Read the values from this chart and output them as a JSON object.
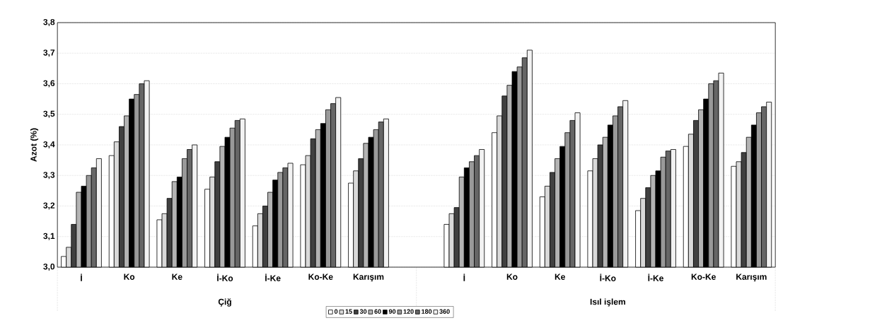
{
  "chart_data": {
    "type": "bar",
    "ylabel": "Azot (%)",
    "categories": [
      "İ",
      "Ko",
      "Ke",
      "İ-Ko",
      "İ-Ke",
      "Ko-Ke",
      "Karışım",
      null,
      "İ",
      "Ko",
      "Ke",
      "İ-Ko",
      "İ-Ke",
      "Ko-Ke",
      "Karışım"
    ],
    "annotations": [
      "Çiğ",
      "Isıl işlem"
    ],
    "ylim": [
      3.0,
      3.8
    ],
    "yticks": [
      {
        "value": 3.0,
        "label": "3,0"
      },
      {
        "value": 3.1,
        "label": "3,1"
      },
      {
        "value": 3.2,
        "label": "3,2"
      },
      {
        "value": 3.3,
        "label": "3,3"
      },
      {
        "value": 3.4,
        "label": "3,4"
      },
      {
        "value": 3.5,
        "label": "3,5"
      },
      {
        "value": 3.6,
        "label": "3,6"
      },
      {
        "value": 3.7,
        "label": "3,7"
      },
      {
        "value": 3.8,
        "label": "3,8"
      }
    ],
    "grid": "y",
    "legend": "bottom",
    "series": [
      {
        "name": "0",
        "color": "#ffffff",
        "values": [
          3.035,
          3.365,
          3.155,
          3.255,
          3.135,
          3.335,
          3.275,
          null,
          3.14,
          3.44,
          3.23,
          3.315,
          3.185,
          3.395,
          3.33
        ]
      },
      {
        "name": "15",
        "color": "#d9d9d9",
        "values": [
          3.065,
          3.41,
          3.175,
          3.295,
          3.175,
          3.365,
          3.315,
          null,
          3.175,
          3.495,
          3.265,
          3.355,
          3.225,
          3.435,
          3.345
        ]
      },
      {
        "name": "30",
        "color": "#404040",
        "values": [
          3.14,
          3.46,
          3.225,
          3.345,
          3.2,
          3.42,
          3.355,
          null,
          3.195,
          3.56,
          3.31,
          3.4,
          3.26,
          3.48,
          3.375
        ]
      },
      {
        "name": "60",
        "color": "#b3b3b3",
        "values": [
          3.245,
          3.495,
          3.28,
          3.395,
          3.245,
          3.45,
          3.405,
          null,
          3.295,
          3.595,
          3.355,
          3.425,
          3.3,
          3.515,
          3.425
        ]
      },
      {
        "name": "90",
        "color": "#000000",
        "values": [
          3.265,
          3.55,
          3.295,
          3.425,
          3.285,
          3.47,
          3.425,
          null,
          3.325,
          3.64,
          3.395,
          3.465,
          3.315,
          3.55,
          3.465
        ]
      },
      {
        "name": "120",
        "color": "#999999",
        "values": [
          3.3,
          3.565,
          3.355,
          3.455,
          3.31,
          3.515,
          3.45,
          null,
          3.345,
          3.655,
          3.44,
          3.495,
          3.36,
          3.6,
          3.505
        ]
      },
      {
        "name": "180",
        "color": "#666666",
        "values": [
          3.325,
          3.6,
          3.385,
          3.48,
          3.325,
          3.535,
          3.475,
          null,
          3.365,
          3.685,
          3.48,
          3.525,
          3.38,
          3.61,
          3.525
        ]
      },
      {
        "name": "360",
        "color": "#f2f2f2",
        "values": [
          3.355,
          3.61,
          3.4,
          3.485,
          3.34,
          3.555,
          3.485,
          null,
          3.385,
          3.71,
          3.505,
          3.545,
          3.385,
          3.635,
          3.54
        ]
      }
    ]
  }
}
